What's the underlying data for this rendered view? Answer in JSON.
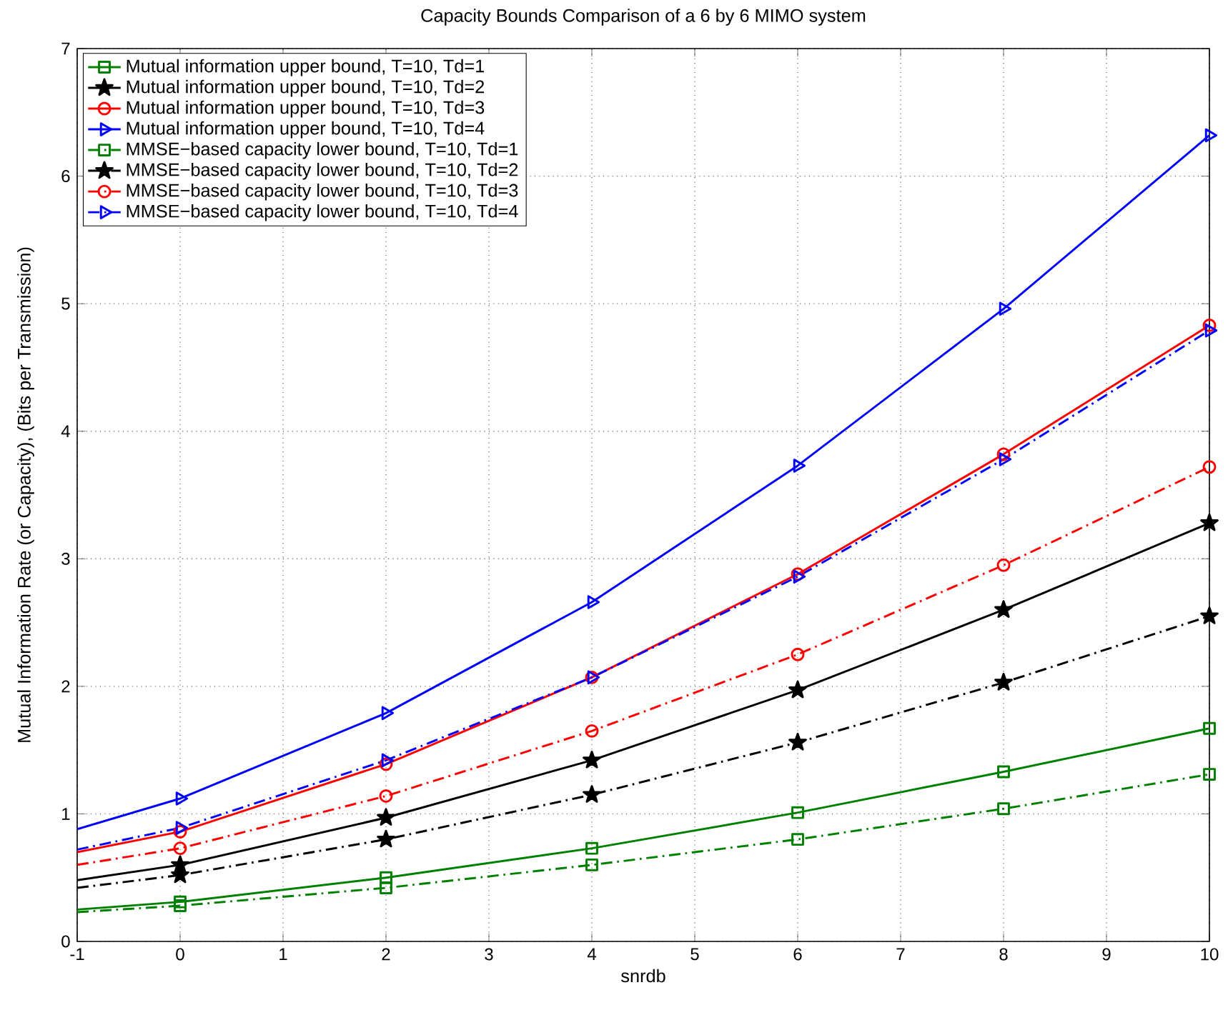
{
  "chart_data": {
    "type": "line",
    "title": "Capacity Bounds Comparison of a 6 by 6 MIMO system",
    "xlabel": "snrdb",
    "ylabel": "Mutual Information Rate (or Capacity), (Bits per Transmission)",
    "x": [
      -1,
      0,
      2,
      4,
      6,
      8,
      10
    ],
    "series": [
      {
        "name": "Mutual information upper bound, T=10, Td=1",
        "color": "#008000",
        "marker": "square",
        "line_style": "solid",
        "values": [
          0.25,
          0.31,
          0.5,
          0.73,
          1.01,
          1.33,
          1.67
        ]
      },
      {
        "name": "Mutual information upper bound, T=10, Td=2",
        "color": "#000000",
        "marker": "star",
        "line_style": "solid",
        "values": [
          0.48,
          0.6,
          0.97,
          1.42,
          1.97,
          2.6,
          3.28
        ]
      },
      {
        "name": "Mutual information upper bound, T=10, Td=3",
        "color": "#ff0000",
        "marker": "circle",
        "line_style": "solid",
        "values": [
          0.7,
          0.86,
          1.39,
          2.07,
          2.88,
          3.82,
          4.83
        ]
      },
      {
        "name": "Mutual information upper bound, T=10, Td=4",
        "color": "#0000ff",
        "marker": "triangle",
        "line_style": "solid",
        "values": [
          0.88,
          1.12,
          1.79,
          2.66,
          3.73,
          4.96,
          6.32
        ]
      },
      {
        "name": "MMSE−based capacity lower bound, T=10, Td=1",
        "color": "#008000",
        "marker": "square",
        "line_style": "dashdot",
        "values": [
          0.23,
          0.28,
          0.42,
          0.6,
          0.8,
          1.04,
          1.31
        ]
      },
      {
        "name": "MMSE−based capacity lower bound, T=10, Td=2",
        "color": "#000000",
        "marker": "star",
        "line_style": "dashdot",
        "values": [
          0.42,
          0.52,
          0.8,
          1.15,
          1.56,
          2.03,
          2.55
        ]
      },
      {
        "name": "MMSE−based capacity lower bound, T=10, Td=3",
        "color": "#ff0000",
        "marker": "circle",
        "line_style": "dashdot",
        "values": [
          0.6,
          0.73,
          1.14,
          1.65,
          2.25,
          2.95,
          3.72
        ]
      },
      {
        "name": "MMSE−based capacity lower bound, T=10, Td=4",
        "color": "#0000ff",
        "marker": "triangle",
        "line_style": "dashdot",
        "values": [
          0.72,
          0.89,
          1.42,
          2.07,
          2.86,
          3.78,
          4.79
        ]
      }
    ],
    "xlim": [
      -1,
      10
    ],
    "ylim": [
      0,
      7
    ],
    "xticks": [
      -1,
      0,
      1,
      2,
      3,
      4,
      5,
      6,
      7,
      8,
      9,
      10
    ],
    "yticks": [
      0,
      1,
      2,
      3,
      4,
      5,
      6,
      7
    ],
    "grid": true,
    "legend": "top left"
  }
}
